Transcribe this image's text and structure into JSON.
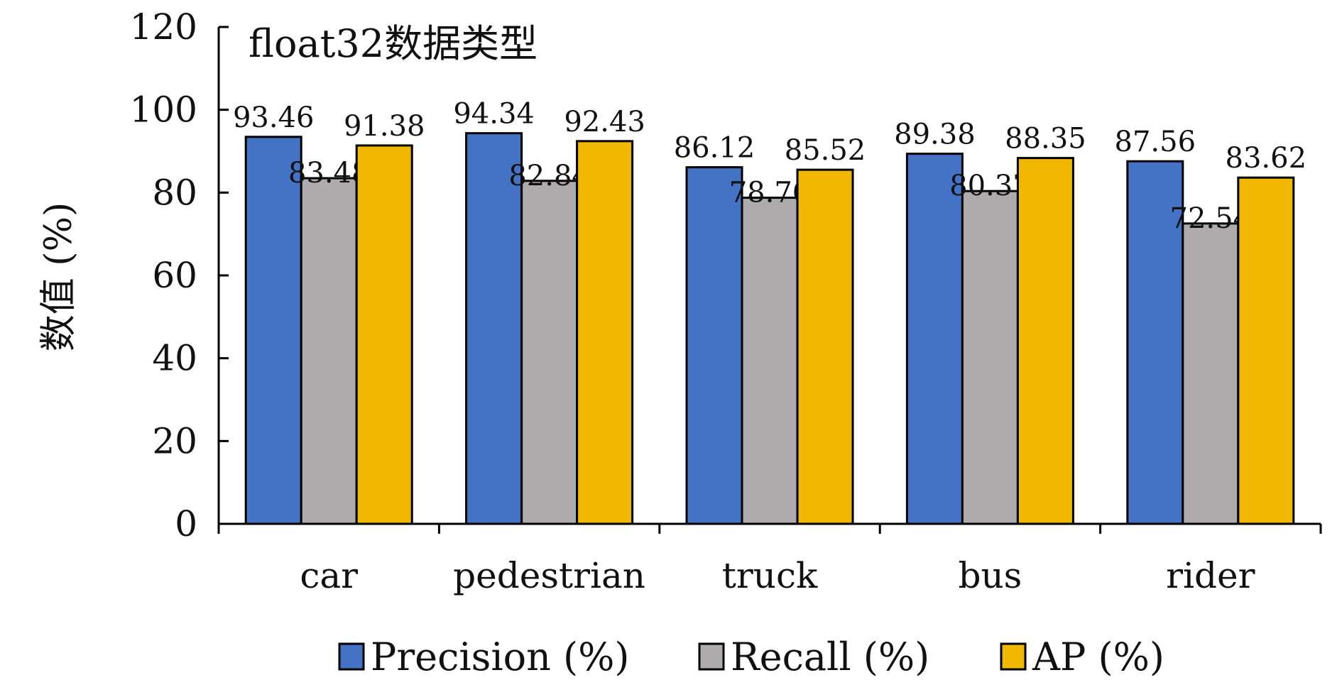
{
  "chart_data": {
    "type": "bar",
    "title": "float32数据类型",
    "xlabel": "",
    "ylabel": "数值 (%)",
    "ylim": [
      0,
      120
    ],
    "yticks": [
      0,
      20,
      40,
      60,
      80,
      100,
      120
    ],
    "categories": [
      "car",
      "pedestrian",
      "truck",
      "bus",
      "rider"
    ],
    "series": [
      {
        "name": "Precision (%)",
        "color": "#4472C4",
        "values": [
          93.46,
          94.34,
          86.12,
          89.38,
          87.56
        ]
      },
      {
        "name": "Recall (%)",
        "color": "#ADABAB",
        "values": [
          83.48,
          82.84,
          78.76,
          80.37,
          72.54
        ]
      },
      {
        "name": "AP (%)",
        "color": "#F0B800",
        "values": [
          91.38,
          92.43,
          85.52,
          88.35,
          83.62
        ]
      }
    ],
    "data_labels": true,
    "grid": false,
    "legend_position": "bottom"
  }
}
